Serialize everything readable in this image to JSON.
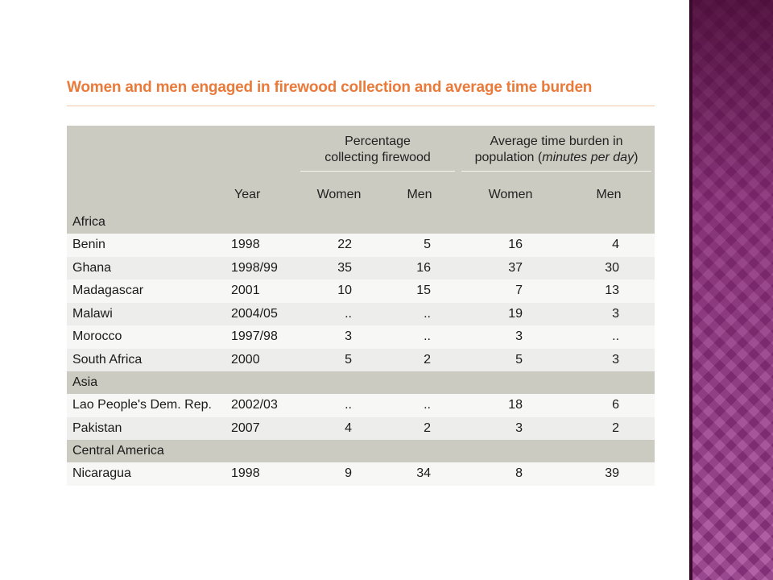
{
  "title": "Women and men engaged in firewood collection and average time burden",
  "header": {
    "group1": "Percentage collecting firewood",
    "group1_line1": "Percentage",
    "group1_line2": "collecting firewood",
    "group2_line1": "Average time burden in",
    "group2_line2_pre": "population (",
    "group2_line2_em": "minutes per day",
    "group2_line2_post": ")",
    "year": "Year",
    "women": "Women",
    "men": "Men"
  },
  "regions": [
    {
      "name": "Africa",
      "rows": [
        {
          "country": "Benin",
          "year": "1998",
          "pct_women": "22",
          "pct_men": "5",
          "time_women": "16",
          "time_men": "4"
        },
        {
          "country": "Ghana",
          "year": "1998/99",
          "pct_women": "35",
          "pct_men": "16",
          "time_women": "37",
          "time_men": "30"
        },
        {
          "country": "Madagascar",
          "year": "2001",
          "pct_women": "10",
          "pct_men": "15",
          "time_women": "7",
          "time_men": "13"
        },
        {
          "country": "Malawi",
          "year": "2004/05",
          "pct_women": "..",
          "pct_men": "..",
          "time_women": "19",
          "time_men": "3"
        },
        {
          "country": "Morocco",
          "year": "1997/98",
          "pct_women": "3",
          "pct_men": "..",
          "time_women": "3",
          "time_men": ".."
        },
        {
          "country": "South Africa",
          "year": "2000",
          "pct_women": "5",
          "pct_men": "2",
          "time_women": "5",
          "time_men": "3"
        }
      ]
    },
    {
      "name": "Asia",
      "rows": [
        {
          "country": "Lao People's Dem. Rep.",
          "year": "2002/03",
          "pct_women": "..",
          "pct_men": "..",
          "time_women": "18",
          "time_men": "6"
        },
        {
          "country": "Pakistan",
          "year": "2007",
          "pct_women": "4",
          "pct_men": "2",
          "time_women": "3",
          "time_men": "2"
        }
      ]
    },
    {
      "name": "Central America",
      "rows": [
        {
          "country": "Nicaragua",
          "year": "1998",
          "pct_women": "9",
          "pct_men": "34",
          "time_women": "8",
          "time_men": "39"
        }
      ]
    }
  ],
  "colors": {
    "title": "#ea7a3a",
    "header_bg": "#cbcbc1",
    "row_alt": "#ededec",
    "row_plain": "#f7f7f5",
    "side_band": "#a03c93"
  }
}
